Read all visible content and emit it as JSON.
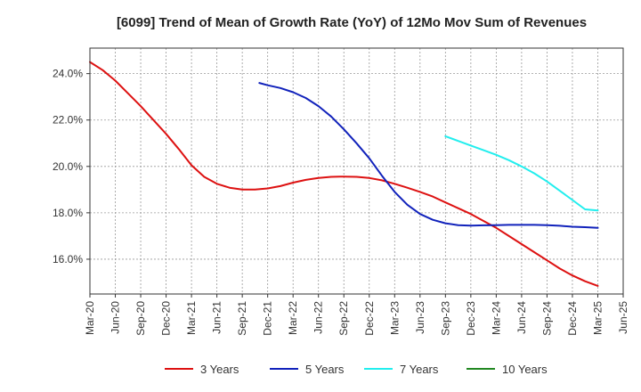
{
  "chart_data": {
    "type": "line",
    "title": "[6099]  Trend of Mean of Growth Rate (YoY) of 12Mo Mov Sum of Revenues",
    "xlabel": "",
    "ylabel": "",
    "x_ticks": [
      "Mar-20",
      "Jun-20",
      "Sep-20",
      "Dec-20",
      "Mar-21",
      "Jun-21",
      "Sep-21",
      "Dec-21",
      "Mar-22",
      "Jun-22",
      "Sep-22",
      "Dec-22",
      "Mar-23",
      "Jun-23",
      "Sep-23",
      "Dec-23",
      "Mar-24",
      "Jun-24",
      "Sep-24",
      "Dec-24",
      "Mar-25",
      "Jun-25"
    ],
    "y_ticks": [
      "16.0%",
      "18.0%",
      "20.0%",
      "22.0%",
      "24.0%"
    ],
    "y_tick_values": [
      16,
      18,
      20,
      22,
      24
    ],
    "ylim": [
      14.5,
      25.1
    ],
    "x_unit": "quarter index (0 = Mar-20)",
    "xlim": [
      0,
      21
    ],
    "grid": true,
    "legend_position": "bottom",
    "series": [
      {
        "name": "3 Years",
        "color": "#dd1111",
        "x": [
          0,
          0.5,
          1,
          1.5,
          2,
          2.5,
          3,
          3.5,
          4,
          4.5,
          5,
          5.5,
          6,
          6.5,
          7,
          7.5,
          8,
          8.5,
          9,
          9.5,
          10,
          10.5,
          11,
          11.5,
          12,
          12.5,
          13,
          13.5,
          14,
          14.5,
          15,
          15.5,
          16,
          16.5,
          17,
          17.5,
          18,
          18.5,
          19,
          19.5,
          20
        ],
        "values": [
          24.5,
          24.15,
          23.7,
          23.15,
          22.6,
          22.0,
          21.4,
          20.75,
          20.05,
          19.55,
          19.25,
          19.08,
          19.0,
          19.0,
          19.05,
          19.15,
          19.3,
          19.42,
          19.5,
          19.55,
          19.56,
          19.55,
          19.5,
          19.4,
          19.25,
          19.08,
          18.9,
          18.7,
          18.45,
          18.2,
          17.95,
          17.65,
          17.35,
          17.0,
          16.65,
          16.3,
          15.95,
          15.6,
          15.3,
          15.05,
          14.85
        ]
      },
      {
        "name": "5 Years",
        "color": "#1122bb",
        "x": [
          6.67,
          7,
          7.5,
          8,
          8.5,
          9,
          9.5,
          10,
          10.5,
          11,
          11.5,
          12,
          12.5,
          13,
          13.5,
          14,
          14.5,
          15,
          15.5,
          16,
          16.5,
          17,
          17.5,
          18,
          18.5,
          19,
          19.5,
          20
        ],
        "values": [
          23.6,
          23.5,
          23.38,
          23.2,
          22.95,
          22.6,
          22.15,
          21.6,
          21.0,
          20.35,
          19.6,
          18.9,
          18.35,
          17.95,
          17.7,
          17.55,
          17.47,
          17.45,
          17.46,
          17.47,
          17.48,
          17.48,
          17.48,
          17.47,
          17.44,
          17.4,
          17.38,
          17.35
        ]
      },
      {
        "name": "7 Years",
        "color": "#22eeee",
        "x": [
          14,
          14.5,
          15,
          15.5,
          16,
          16.5,
          17,
          17.5,
          18,
          18.5,
          19,
          19.5,
          20
        ],
        "values": [
          21.3,
          21.1,
          20.9,
          20.7,
          20.5,
          20.27,
          20.0,
          19.7,
          19.35,
          18.95,
          18.55,
          18.15,
          18.1
        ]
      },
      {
        "name": "10 Years",
        "color": "#228822",
        "x": [],
        "values": []
      }
    ]
  }
}
